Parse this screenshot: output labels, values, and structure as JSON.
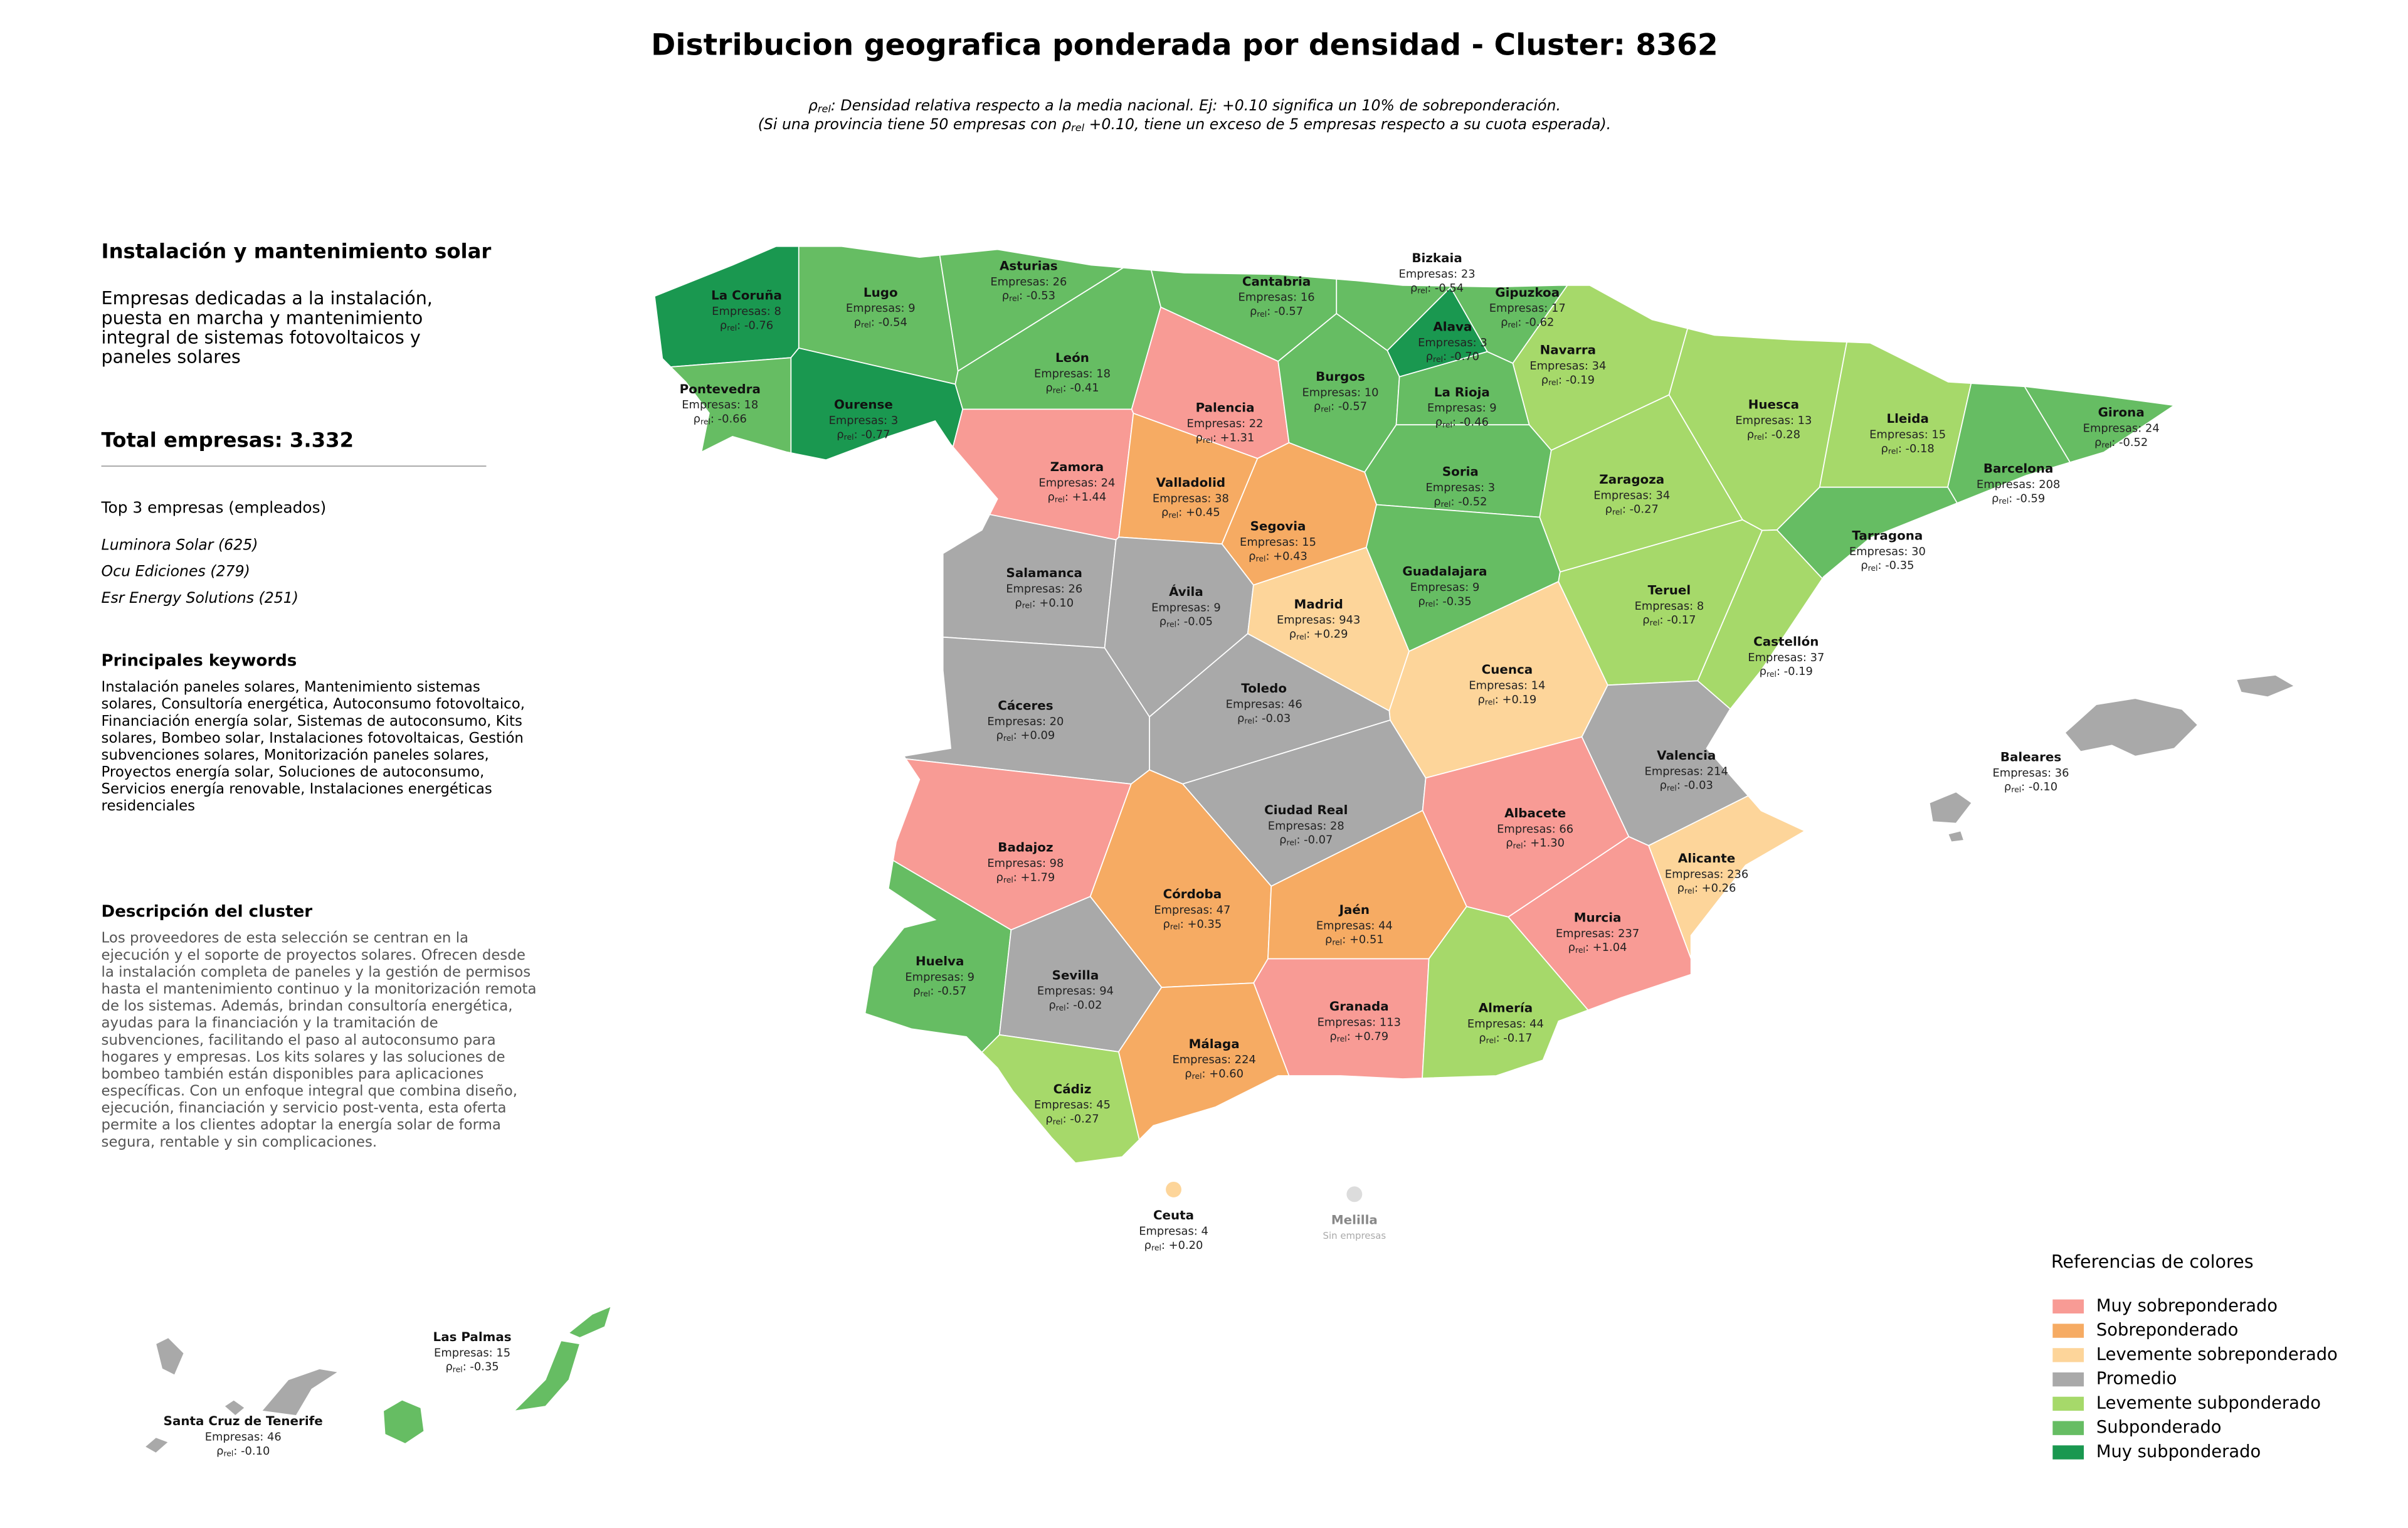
{
  "title": "Distribucion geografica ponderada por densidad - Cluster: 8362",
  "note_lines": [
    [
      {
        "text": "ρ"
      },
      {
        "text": "rel",
        "sub": true
      },
      {
        "text": ": Densidad relativa respecto a la media nacional. Ej: +0.10 significa un 10% de sobreponderación."
      }
    ],
    [
      {
        "text": "(Si una provincia tiene 50 empresas con ρ"
      },
      {
        "text": "rel",
        "sub": true
      },
      {
        "text": " +0.10, tiene un exceso de 5 empresas respecto a su cuota esperada)."
      }
    ]
  ],
  "panel": {
    "heading": "Instalación y mantenimiento solar",
    "summary_lines": [
      "Empresas dedicadas a la instalación,",
      "puesta en marcha y mantenimiento",
      "integral de sistemas fotovoltaicos y",
      "paneles solares"
    ],
    "total": "Total empresas: 3.332",
    "top_title": "Top 3 empresas (empleados)",
    "top_items": [
      "Luminora Solar (625)",
      "Ocu Ediciones (279)",
      "Esr Energy Solutions (251)"
    ],
    "keywords_title": "Principales keywords",
    "keywords_lines": [
      "Instalación paneles solares, Mantenimiento sistemas",
      "solares, Consultoría energética, Autoconsumo fotovoltaico,",
      "Financiación energía solar, Sistemas de autoconsumo, Kits",
      "solares, Bombeo solar, Instalaciones fotovoltaicas, Gestión",
      "subvenciones solares, Monitorización paneles solares,",
      "Proyectos energía solar, Soluciones de autoconsumo,",
      "Servicios energía renovable, Instalaciones energéticas",
      "residenciales"
    ],
    "description_title": "Descripción del cluster",
    "description_lines": [
      "Los proveedores de esta selección se centran en la",
      "ejecución y el soporte de proyectos solares. Ofrecen desde",
      "la instalación completa de paneles y la gestión de permisos",
      "hasta el mantenimiento continuo y la monitorización remota",
      "de los sistemas. Además, brindan consultoría energética,",
      "ayudas para la financiación y la tramitación de",
      "subvenciones, facilitando el paso al autoconsumo para",
      "hogares y empresas. Los kits solares y las soluciones de",
      "bombeo también están disponibles para aplicaciones",
      "específicas. Con un enfoque integral que combina diseño,",
      "ejecución, financiación y servicio post-venta, esta oferta",
      "permite a los clientes adoptar la energía solar de forma",
      "segura, rentable y sin complicaciones."
    ]
  },
  "rho_symbol": "ρ",
  "rho_sub": "rel",
  "provinces": [
    {
      "name": "La Coruña",
      "companies": "Empresas: 8",
      "rho": ": -0.76",
      "level": 6
    },
    {
      "name": "Lugo",
      "companies": "Empresas: 9",
      "rho": ": -0.54",
      "level": 5
    },
    {
      "name": "Asturias",
      "companies": "Empresas: 26",
      "rho": ": -0.53",
      "level": 5
    },
    {
      "name": "Cantabria",
      "companies": "Empresas: 16",
      "rho": ": -0.57",
      "level": 5
    },
    {
      "name": "Bizkaia",
      "companies": "Empresas: 23",
      "rho": ": -0.54",
      "level": 5
    },
    {
      "name": "Gipuzkoa",
      "companies": "Empresas: 17",
      "rho": ": -0.62",
      "level": 5
    },
    {
      "name": "Alava",
      "companies": "Empresas: 3",
      "rho": ": -0.70",
      "level": 6
    },
    {
      "name": "Navarra",
      "companies": "Empresas: 34",
      "rho": ": -0.19",
      "level": 4
    },
    {
      "name": "Pontevedra",
      "companies": "Empresas: 18",
      "rho": ": -0.66",
      "level": 5
    },
    {
      "name": "Ourense",
      "companies": "Empresas: 3",
      "rho": ": -0.77",
      "level": 6
    },
    {
      "name": "León",
      "companies": "Empresas: 18",
      "rho": ": -0.41",
      "level": 5
    },
    {
      "name": "Palencia",
      "companies": "Empresas: 22",
      "rho": ": +1.31",
      "level": 0
    },
    {
      "name": "Burgos",
      "companies": "Empresas: 10",
      "rho": ": -0.57",
      "level": 5
    },
    {
      "name": "La Rioja",
      "companies": "Empresas: 9",
      "rho": ": -0.46",
      "level": 5
    },
    {
      "name": "Huesca",
      "companies": "Empresas: 13",
      "rho": ": -0.28",
      "level": 4
    },
    {
      "name": "Lleida",
      "companies": "Empresas: 15",
      "rho": ": -0.18",
      "level": 4
    },
    {
      "name": "Girona",
      "companies": "Empresas: 24",
      "rho": ": -0.52",
      "level": 5
    },
    {
      "name": "Barcelona",
      "companies": "Empresas: 208",
      "rho": ": -0.59",
      "level": 5
    },
    {
      "name": "Zamora",
      "companies": "Empresas: 24",
      "rho": ": +1.44",
      "level": 0
    },
    {
      "name": "Valladolid",
      "companies": "Empresas: 38",
      "rho": ": +0.45",
      "level": 1
    },
    {
      "name": "Soria",
      "companies": "Empresas: 3",
      "rho": ": -0.52",
      "level": 5
    },
    {
      "name": "Zaragoza",
      "companies": "Empresas: 34",
      "rho": ": -0.27",
      "level": 4
    },
    {
      "name": "Tarragona",
      "companies": "Empresas: 30",
      "rho": ": -0.35",
      "level": 5
    },
    {
      "name": "Segovia",
      "companies": "Empresas: 15",
      "rho": ": +0.43",
      "level": 1
    },
    {
      "name": "Salamanca",
      "companies": "Empresas: 26",
      "rho": ": +0.10",
      "level": 3
    },
    {
      "name": "Guadalajara",
      "companies": "Empresas: 9",
      "rho": ": -0.35",
      "level": 5
    },
    {
      "name": "Ávila",
      "companies": "Empresas: 9",
      "rho": ": -0.05",
      "level": 3
    },
    {
      "name": "Madrid",
      "companies": "Empresas: 943",
      "rho": ": +0.29",
      "level": 2
    },
    {
      "name": "Teruel",
      "companies": "Empresas: 8",
      "rho": ": -0.17",
      "level": 4
    },
    {
      "name": "Castellón",
      "companies": "Empresas: 37",
      "rho": ": -0.19",
      "level": 4
    },
    {
      "name": "Cuenca",
      "companies": "Empresas: 14",
      "rho": ": +0.19",
      "level": 2
    },
    {
      "name": "Toledo",
      "companies": "Empresas: 46",
      "rho": ": -0.03",
      "level": 3
    },
    {
      "name": "Cáceres",
      "companies": "Empresas: 20",
      "rho": ": +0.09",
      "level": 3
    },
    {
      "name": "Valencia",
      "companies": "Empresas: 214",
      "rho": ": -0.03",
      "level": 3
    },
    {
      "name": "Ciudad Real",
      "companies": "Empresas: 28",
      "rho": ": -0.07",
      "level": 3
    },
    {
      "name": "Albacete",
      "companies": "Empresas: 66",
      "rho": ": +1.30",
      "level": 0
    },
    {
      "name": "Badajoz",
      "companies": "Empresas: 98",
      "rho": ": +1.79",
      "level": 0
    },
    {
      "name": "Alicante",
      "companies": "Empresas: 236",
      "rho": ": +0.26",
      "level": 2
    },
    {
      "name": "Córdoba",
      "companies": "Empresas: 47",
      "rho": ": +0.35",
      "level": 1
    },
    {
      "name": "Jaén",
      "companies": "Empresas: 44",
      "rho": ": +0.51",
      "level": 1
    },
    {
      "name": "Murcia",
      "companies": "Empresas: 237",
      "rho": ": +1.04",
      "level": 0
    },
    {
      "name": "Huelva",
      "companies": "Empresas: 9",
      "rho": ": -0.57",
      "level": 5
    },
    {
      "name": "Sevilla",
      "companies": "Empresas: 94",
      "rho": ": -0.02",
      "level": 3
    },
    {
      "name": "Granada",
      "companies": "Empresas: 113",
      "rho": ": +0.79",
      "level": 0
    },
    {
      "name": "Almería",
      "companies": "Empresas: 44",
      "rho": ": -0.17",
      "level": 4
    },
    {
      "name": "Málaga",
      "companies": "Empresas: 224",
      "rho": ": +0.60",
      "level": 1
    },
    {
      "name": "Cádiz",
      "companies": "Empresas: 45",
      "rho": ": -0.27",
      "level": 4
    },
    {
      "name": "Baleares",
      "companies": "Empresas: 36",
      "rho": ": -0.10",
      "level": 3
    },
    {
      "name": "Ceuta",
      "companies": "Empresas: 4",
      "rho": ": +0.20",
      "level": 2
    },
    {
      "name": "Melilla",
      "companies": "Sin empresas"
    },
    {
      "name": "Las Palmas",
      "companies": "Empresas: 15",
      "rho": ": -0.35",
      "level": 5
    },
    {
      "name": "Santa Cruz de Tenerife",
      "companies": "Empresas: 46",
      "rho": ": -0.10",
      "level": 3
    }
  ],
  "legend": {
    "title": "Referencias de colores",
    "items": [
      {
        "name": "Muy sobreponderado",
        "color": "#f89b95"
      },
      {
        "name": "Sobreponderado",
        "color": "#f6ab63"
      },
      {
        "name": "Levemente sobreponderado",
        "color": "#fdd59a"
      },
      {
        "name": "Promedio",
        "color": "#a9a9a9"
      },
      {
        "name": "Levemente subponderado",
        "color": "#a6d96a"
      },
      {
        "name": "Subponderado",
        "color": "#66bd63"
      },
      {
        "name": "Muy subponderado",
        "color": "#1a9850"
      }
    ],
    "empty_color": "#dcdcdc"
  }
}
